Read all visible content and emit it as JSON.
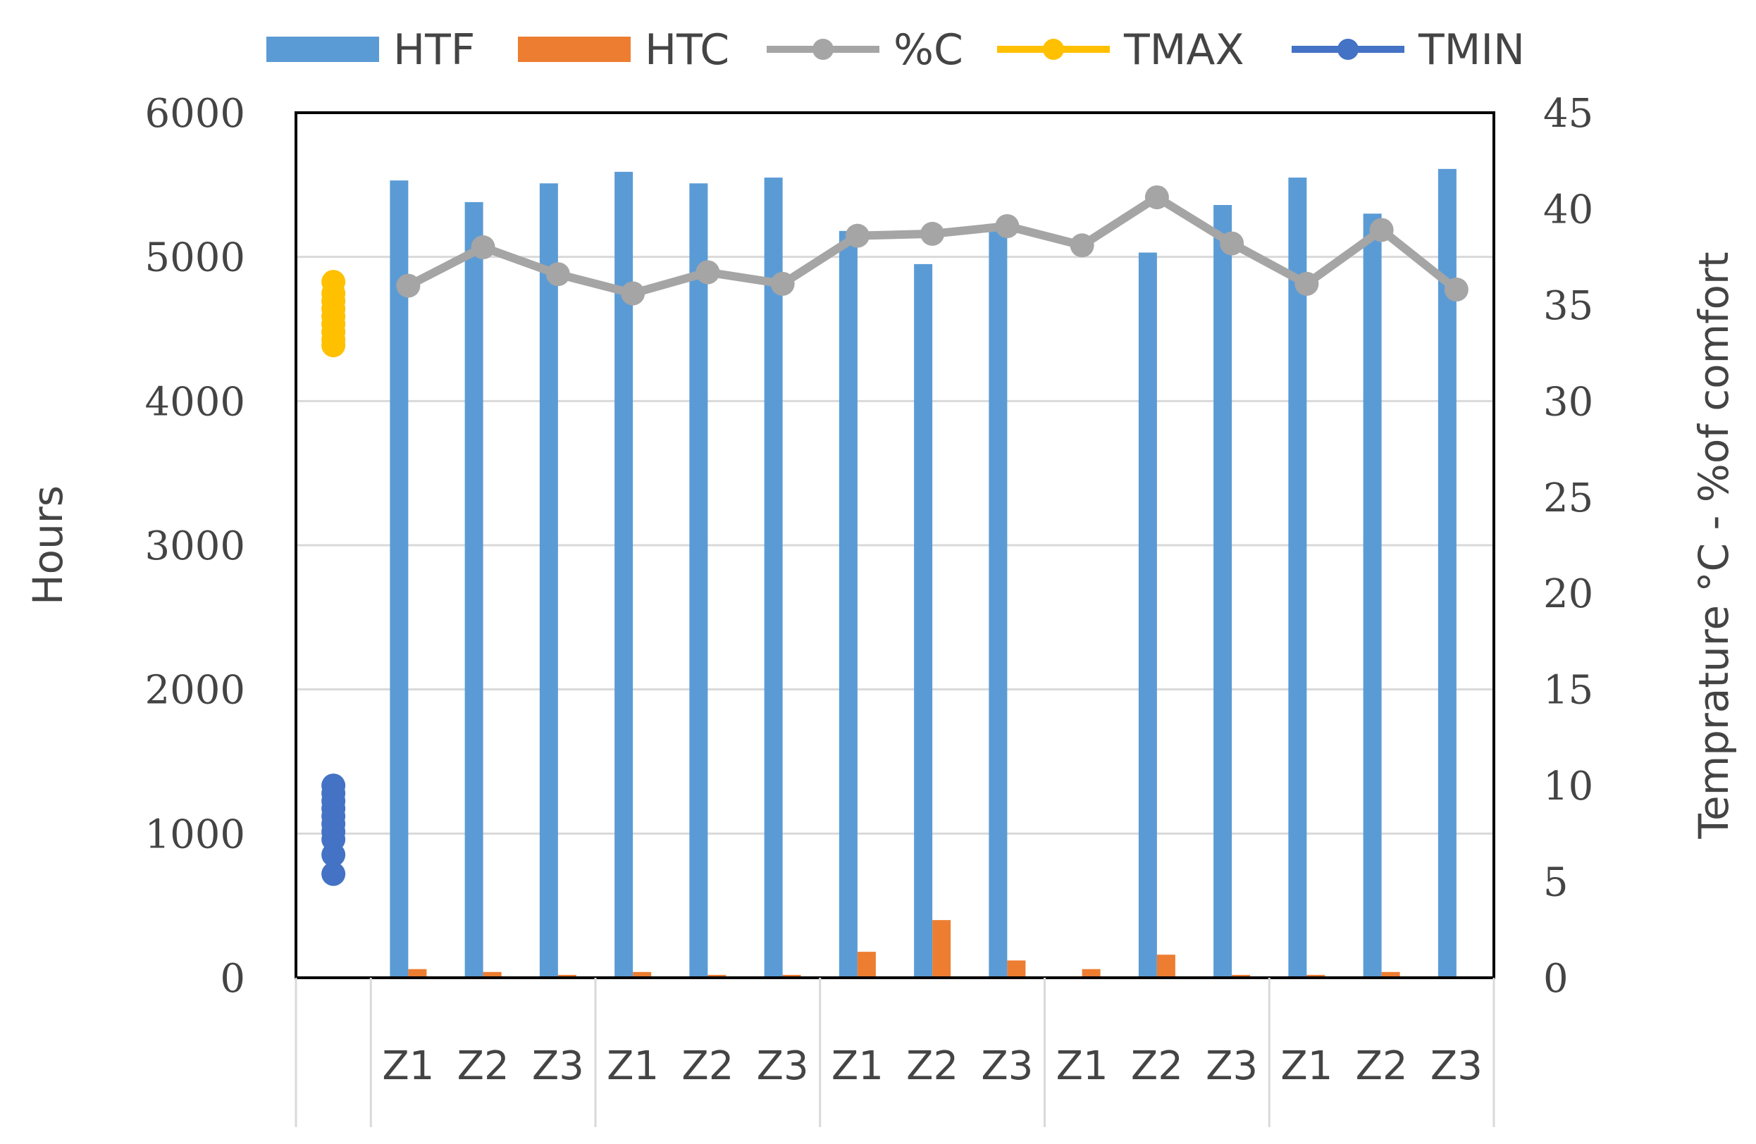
{
  "chart_data": {
    "type": "bar",
    "categories": [
      "",
      "Z1",
      "Z2",
      "Z3",
      "Z1",
      "Z2",
      "Z3",
      "Z1",
      "Z2",
      "Z3",
      "Z1",
      "Z2",
      "Z3",
      "Z1",
      "Z2",
      "Z3"
    ],
    "ylabel": "Hours",
    "y2label": "Temprature °C -  %of comfort",
    "ylim": [
      0,
      6000
    ],
    "y2lim": [
      0,
      45
    ],
    "yticks": [
      "0",
      "1000",
      "2000",
      "3000",
      "4000",
      "5000",
      "6000"
    ],
    "y2ticks": [
      "0",
      "5",
      "10",
      "15",
      "20",
      "25",
      "30",
      "35",
      "40",
      "45"
    ],
    "grid": true,
    "legend_position": "top",
    "series": [
      {
        "name": "HTF",
        "type": "bar",
        "axis": "left",
        "color": "#5B9BD5",
        "values": [
          null,
          5530,
          5380,
          5510,
          5590,
          5510,
          5550,
          5180,
          4950,
          5220,
          0,
          5030,
          5360,
          5550,
          5300,
          5610
        ]
      },
      {
        "name": "HTC",
        "type": "bar",
        "axis": "left",
        "color": "#ED7D31",
        "values": [
          null,
          60,
          40,
          20,
          40,
          20,
          20,
          180,
          400,
          120,
          60,
          160,
          20,
          20,
          40,
          0
        ]
      },
      {
        "name": "%C",
        "type": "line",
        "axis": "right",
        "color": "#A5A5A5",
        "values": [
          null,
          36.0,
          38.0,
          36.6,
          35.6,
          36.7,
          36.1,
          38.6,
          38.7,
          39.1,
          38.1,
          40.6,
          38.2,
          36.1,
          38.9,
          35.8
        ]
      },
      {
        "name": "TMAX",
        "type": "scatter",
        "axis": "right",
        "color": "#FFC000",
        "points": [
          {
            "x": "",
            "y": 36.2
          },
          {
            "x": "",
            "y": 35.6
          },
          {
            "x": "",
            "y": 35.2
          },
          {
            "x": "",
            "y": 34.8
          },
          {
            "x": "",
            "y": 34.4
          },
          {
            "x": "",
            "y": 34.0
          },
          {
            "x": "",
            "y": 33.6
          },
          {
            "x": "",
            "y": 33.2
          },
          {
            "x": "",
            "y": 32.9
          }
        ]
      },
      {
        "name": "TMIN",
        "type": "scatter",
        "axis": "right",
        "color": "#4472C4",
        "points": [
          {
            "x": "",
            "y": 10.0
          },
          {
            "x": "",
            "y": 9.6
          },
          {
            "x": "",
            "y": 9.2
          },
          {
            "x": "",
            "y": 8.8
          },
          {
            "x": "",
            "y": 8.4
          },
          {
            "x": "",
            "y": 8.0
          },
          {
            "x": "",
            "y": 7.6
          },
          {
            "x": "",
            "y": 7.2
          },
          {
            "x": "",
            "y": 6.4
          },
          {
            "x": "",
            "y": 5.4
          }
        ]
      }
    ]
  }
}
